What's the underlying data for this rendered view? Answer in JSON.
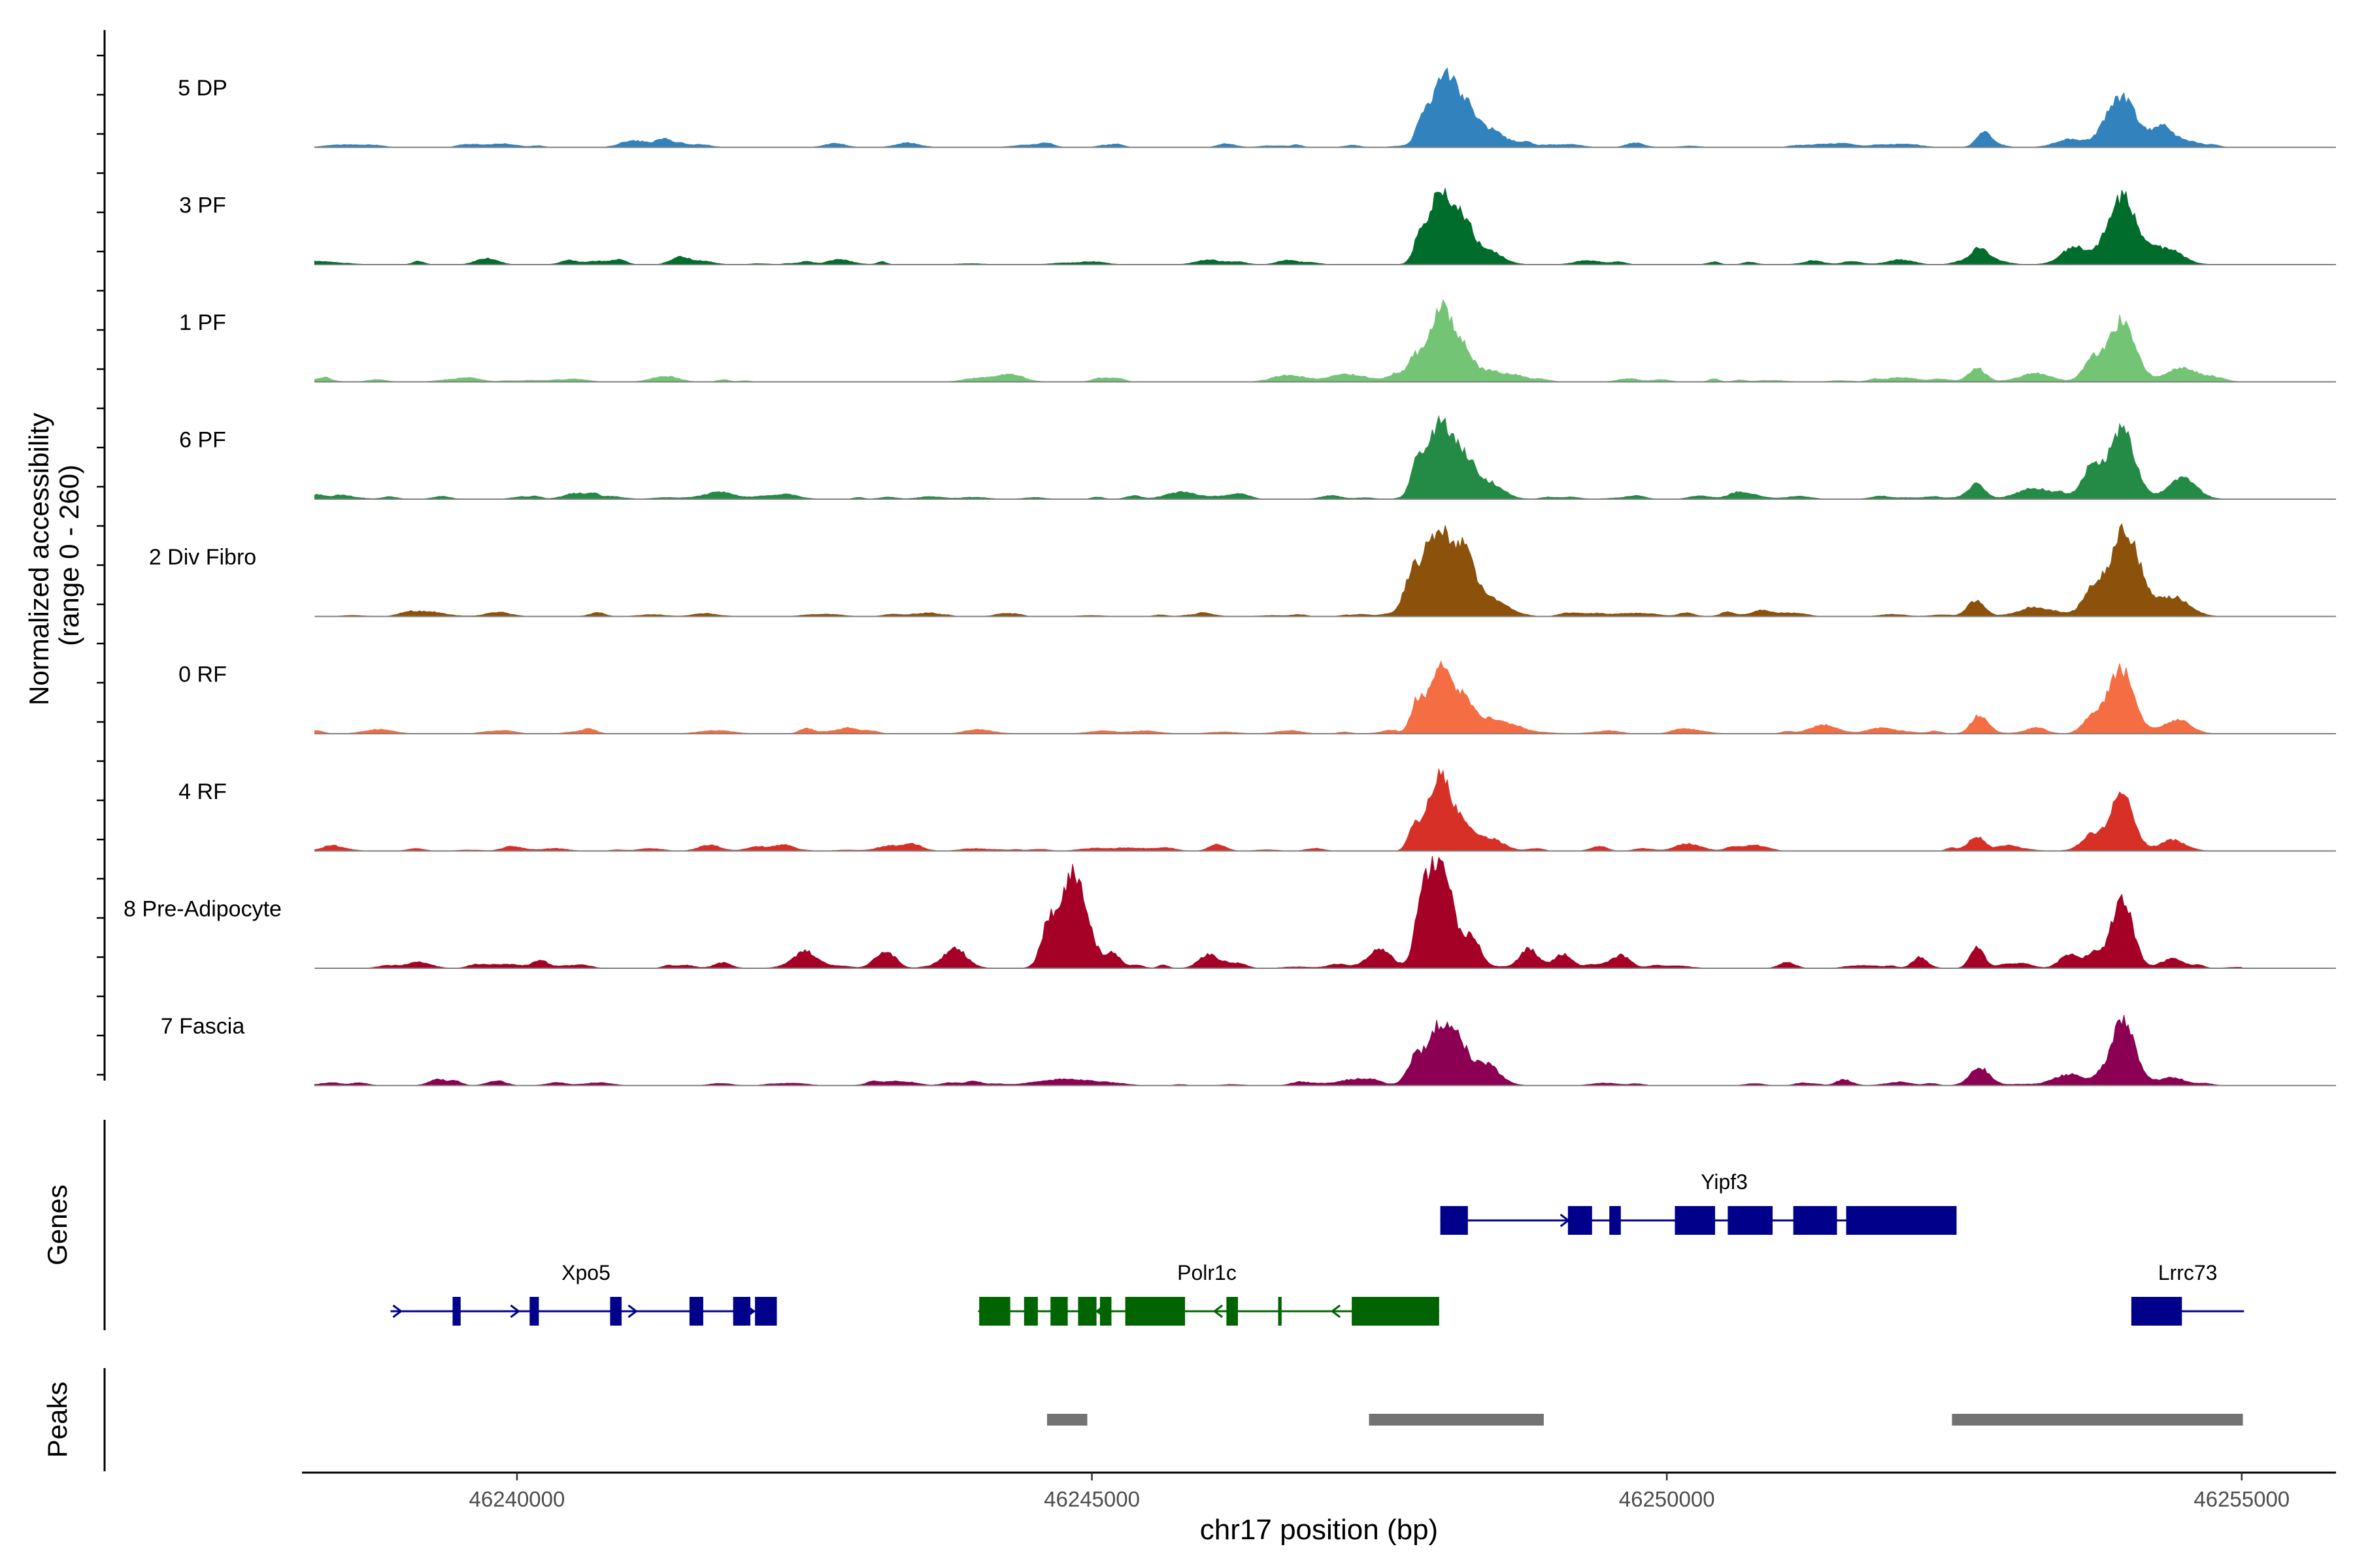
{
  "chart_data": {
    "type": "area",
    "title": "",
    "ylabel_line1": "Normalized accessibility",
    "ylabel_line2": "(range 0 - 260)",
    "yrange": [
      0,
      260
    ],
    "xlabel": "chr17 position (bp)",
    "xlim": [
      46238130,
      46255820
    ],
    "xticks": [
      46240000,
      46245000,
      46250000,
      46255000
    ],
    "xtick_labels": [
      "46240000",
      "46245000",
      "46250000",
      "46255000"
    ],
    "tracks": [
      {
        "name": "5 DP",
        "color": "#3182bd",
        "peaks": [
          [
            46248080,
            175,
            110
          ],
          [
            46247870,
            50,
            50
          ],
          [
            46248450,
            35,
            120
          ],
          [
            46248280,
            55,
            70
          ],
          [
            46252750,
            32,
            60
          ],
          [
            46253950,
            110,
            130
          ],
          [
            46254320,
            35,
            110
          ],
          [
            46253500,
            18,
            120
          ]
        ]
      },
      {
        "name": "3 PF",
        "color": "#006d2c",
        "peaks": [
          [
            46248040,
            165,
            110
          ],
          [
            46247850,
            45,
            50
          ],
          [
            46248450,
            30,
            120
          ],
          [
            46248250,
            60,
            70
          ],
          [
            46252700,
            28,
            70
          ],
          [
            46253960,
            150,
            120
          ],
          [
            46254300,
            32,
            130
          ],
          [
            46253550,
            30,
            110
          ]
        ]
      },
      {
        "name": "1 PF",
        "color": "#74c476",
        "peaks": [
          [
            46248040,
            175,
            110
          ],
          [
            46247800,
            40,
            50
          ],
          [
            46248450,
            25,
            120
          ],
          [
            46248250,
            50,
            70
          ],
          [
            46252700,
            25,
            70
          ],
          [
            46253960,
            135,
            110
          ],
          [
            46254500,
            30,
            120
          ],
          [
            46253700,
            50,
            80
          ],
          [
            46253200,
            15,
            150
          ]
        ]
      },
      {
        "name": "6 PF",
        "color": "#238b45",
        "peaks": [
          [
            46248030,
            175,
            110
          ],
          [
            46247820,
            55,
            50
          ],
          [
            46248450,
            38,
            120
          ],
          [
            46248250,
            70,
            80
          ],
          [
            46252700,
            32,
            70
          ],
          [
            46253960,
            155,
            110
          ],
          [
            46254480,
            50,
            120
          ],
          [
            46253700,
            70,
            80
          ],
          [
            46253200,
            25,
            150
          ]
        ]
      },
      {
        "name": "2 Div Fibro",
        "color": "#8c510a",
        "peaks": [
          [
            46248010,
            200,
            140
          ],
          [
            46247770,
            55,
            60
          ],
          [
            46248450,
            38,
            140
          ],
          [
            46248250,
            90,
            80
          ],
          [
            46252700,
            32,
            70
          ],
          [
            46253990,
            185,
            130
          ],
          [
            46254420,
            40,
            130
          ],
          [
            46253700,
            55,
            80
          ],
          [
            46253200,
            18,
            150
          ]
        ]
      },
      {
        "name": "0 RF",
        "color": "#f46d43",
        "peaks": [
          [
            46248040,
            165,
            100
          ],
          [
            46247820,
            55,
            50
          ],
          [
            46248450,
            35,
            120
          ],
          [
            46248250,
            60,
            70
          ],
          [
            46252720,
            42,
            70
          ],
          [
            46253950,
            140,
            110
          ],
          [
            46254450,
            30,
            110
          ],
          [
            46253700,
            30,
            80
          ]
        ]
      },
      {
        "name": "4 RF",
        "color": "#d73027",
        "peaks": [
          [
            46248030,
            175,
            100
          ],
          [
            46247800,
            50,
            50
          ],
          [
            46248450,
            30,
            120
          ],
          [
            46248250,
            45,
            70
          ],
          [
            46252700,
            30,
            70
          ],
          [
            46253960,
            120,
            100
          ],
          [
            46254400,
            25,
            110
          ],
          [
            46253700,
            32,
            80
          ]
        ]
      },
      {
        "name": "8 Pre-Adipocyte",
        "color": "#a50026",
        "peaks": [
          [
            46244840,
            220,
            110
          ],
          [
            46244620,
            80,
            60
          ],
          [
            46245200,
            25,
            60
          ],
          [
            46248030,
            255,
            100
          ],
          [
            46247870,
            120,
            60
          ],
          [
            46248300,
            65,
            80
          ],
          [
            46247500,
            45,
            100
          ],
          [
            46248800,
            45,
            80
          ],
          [
            46249100,
            32,
            80
          ],
          [
            46243800,
            40,
            90
          ],
          [
            46243200,
            30,
            80
          ],
          [
            46242500,
            32,
            100
          ],
          [
            46240200,
            18,
            60
          ],
          [
            46246000,
            25,
            80
          ],
          [
            46252700,
            48,
            60
          ],
          [
            46253960,
            150,
            90
          ],
          [
            46253500,
            30,
            80
          ],
          [
            46253700,
            32,
            60
          ],
          [
            46254400,
            22,
            100
          ],
          [
            46249600,
            30,
            80
          ],
          [
            46252200,
            22,
            60
          ]
        ]
      },
      {
        "name": "7 Fascia",
        "color": "#8b0052",
        "peaks": [
          [
            46248030,
            125,
            120
          ],
          [
            46247800,
            40,
            60
          ],
          [
            46248400,
            40,
            120
          ],
          [
            46248200,
            55,
            80
          ],
          [
            46252720,
            35,
            80
          ],
          [
            46253970,
            140,
            100
          ],
          [
            46253500,
            25,
            120
          ],
          [
            46254400,
            18,
            110
          ],
          [
            46244800,
            15,
            200
          ],
          [
            46247300,
            15,
            150
          ]
        ]
      }
    ],
    "genes": {
      "axis_label": "Genes",
      "items": [
        {
          "name": "Yipf3",
          "row": 0,
          "strand": "+",
          "color": "#00008b",
          "start": 46248030,
          "end": 46252520,
          "exons": [
            [
              46248030,
              46248270
            ],
            [
              46249140,
              46249350
            ],
            [
              46249500,
              46249600
            ],
            [
              46250070,
              46250420
            ],
            [
              46250530,
              46250920
            ],
            [
              46251100,
              46251480
            ],
            [
              46251560,
              46252520
            ]
          ]
        },
        {
          "name": "Xpo5",
          "row": 1,
          "strand": "+",
          "color": "#00008b",
          "start": 46238900,
          "end": 46242260,
          "exons": [
            [
              46239440,
              46239510
            ],
            [
              46240110,
              46240190
            ],
            [
              46240810,
              46240910
            ],
            [
              46241500,
              46241620
            ],
            [
              46241880,
              46242030
            ],
            [
              46242070,
              46242150
            ],
            [
              46242100,
              46242260
            ]
          ]
        },
        {
          "name": "Polr1c",
          "row": 1,
          "strand": "-",
          "color": "#006400",
          "start": 46244020,
          "end": 46248020,
          "exons": [
            [
              46244020,
              46244290
            ],
            [
              46244410,
              46244530
            ],
            [
              46244640,
              46244790
            ],
            [
              46244880,
              46245040
            ],
            [
              46245070,
              46245170
            ],
            [
              46245290,
              46245810
            ],
            [
              46246170,
              46246270
            ],
            [
              46246620,
              46246650
            ],
            [
              46247260,
              46248020
            ]
          ]
        },
        {
          "name": "Lrrc73",
          "row": 1,
          "strand": "+",
          "color": "#00008b",
          "start": 46254040,
          "end": 46255020,
          "exons": [
            [
              46254040,
              46254480
            ]
          ]
        }
      ]
    },
    "peaks_track": {
      "axis_label": "Peaks",
      "color": "#737373",
      "regions": [
        [
          46244610,
          46244960
        ],
        [
          46247410,
          46248930
        ],
        [
          46252480,
          46255010
        ]
      ]
    }
  }
}
